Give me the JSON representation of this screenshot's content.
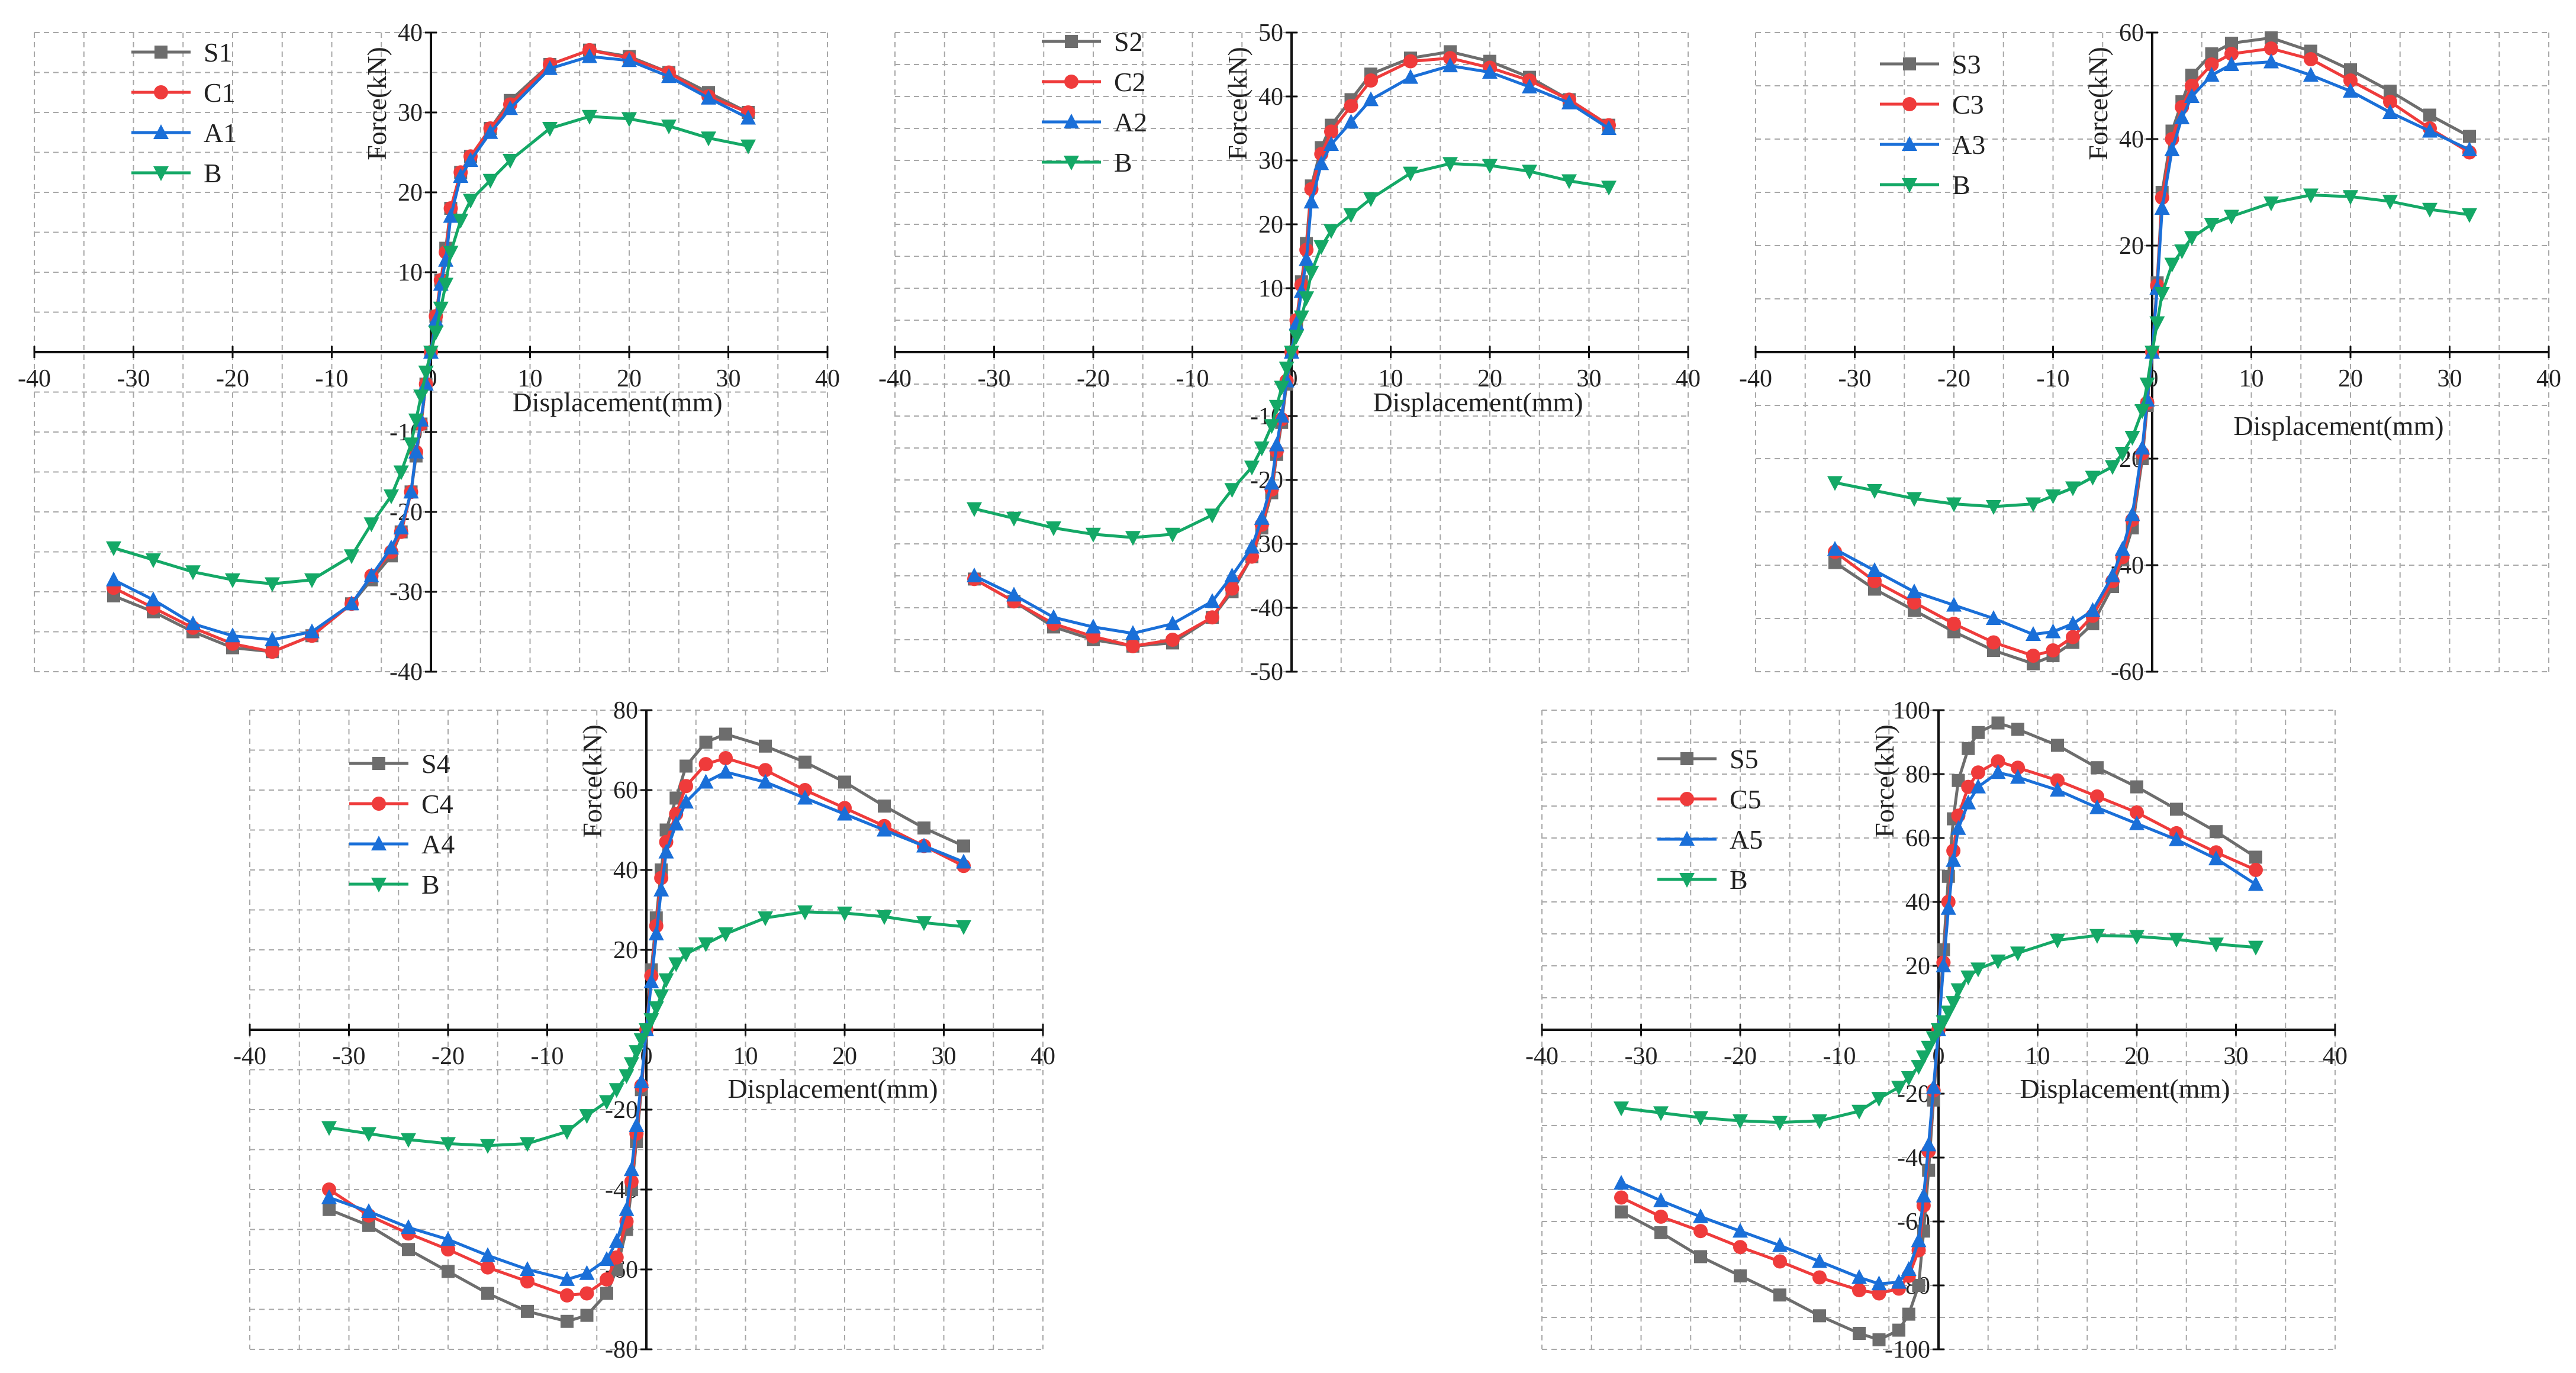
{
  "figure": {
    "colors": {
      "S": "#6d6d6d",
      "C": "#ef3b3b",
      "A": "#1a6fd8",
      "B": "#14a866"
    },
    "markers": {
      "S": "square",
      "C": "circle",
      "A": "triangle-up",
      "B": "triangle-down"
    }
  },
  "chart_data": [
    {
      "id": "p1",
      "type": "line",
      "xlabel": "Displacement(mm)",
      "ylabel": "Force(kN)",
      "xlim": [
        -40,
        40
      ],
      "ylim": [
        -40,
        40
      ],
      "x_ticks": [
        -40,
        -30,
        -20,
        -10,
        0,
        10,
        20,
        30,
        40
      ],
      "y_ticks": [
        -40,
        -30,
        -20,
        -10,
        0,
        10,
        20,
        30,
        40
      ],
      "legend": [
        "S1",
        "C1",
        "A1",
        "B"
      ],
      "x": [
        -32,
        -28,
        -24,
        -20,
        -16,
        -12,
        -8,
        -6,
        -4,
        -3,
        -2,
        -1.5,
        -1,
        -0.5,
        0,
        0.5,
        1,
        1.5,
        2,
        3,
        4,
        6,
        8,
        12,
        16,
        20,
        24,
        28,
        32
      ],
      "series": [
        {
          "name": "S1",
          "key": "S",
          "values": [
            -30.5,
            -32.5,
            -35,
            -37,
            -37.5,
            -35.5,
            -31.5,
            -28.5,
            -25.5,
            -22.5,
            -17.5,
            -13,
            -9,
            -4,
            0,
            4.5,
            9,
            13,
            18,
            22.5,
            24.5,
            28,
            31.5,
            36,
            37.8,
            37,
            35,
            32.5,
            30
          ]
        },
        {
          "name": "C1",
          "key": "C",
          "values": [
            -29.5,
            -32,
            -34.5,
            -36.5,
            -37.5,
            -35.5,
            -31.5,
            -28,
            -25,
            -22.5,
            -17.5,
            -12.5,
            -9,
            -4,
            0,
            4.5,
            9,
            12.5,
            18,
            22.5,
            24.5,
            28,
            31,
            36,
            37.8,
            36.8,
            35,
            32,
            30
          ]
        },
        {
          "name": "A1",
          "key": "A",
          "values": [
            -28.5,
            -31,
            -34,
            -35.5,
            -36,
            -35,
            -31.5,
            -28,
            -24.5,
            -22,
            -17.5,
            -12.5,
            -8.5,
            -4,
            0,
            4,
            8.5,
            11.5,
            17,
            22,
            24,
            27.5,
            30.5,
            35.5,
            37,
            36.5,
            34.5,
            31.8,
            29.3
          ]
        },
        {
          "name": "B",
          "key": "B",
          "values": [
            -24.5,
            -26,
            -27.5,
            -28.5,
            -29,
            -28.5,
            -25.5,
            -21.5,
            -18,
            -15,
            -11.5,
            -8.5,
            -5.5,
            -2.5,
            0,
            2.5,
            5.5,
            8.5,
            12.5,
            16.5,
            19,
            21.5,
            24,
            28,
            29.5,
            29.2,
            28.3,
            26.8,
            25.8
          ]
        }
      ]
    },
    {
      "id": "p2",
      "type": "line",
      "xlabel": "Displacement(mm)",
      "ylabel": "Force(kN)",
      "xlim": [
        -40,
        40
      ],
      "ylim": [
        -50,
        50
      ],
      "x_ticks": [
        -40,
        -30,
        -20,
        -10,
        0,
        10,
        20,
        30,
        40
      ],
      "y_ticks": [
        -50,
        -40,
        -30,
        -20,
        -10,
        0,
        10,
        20,
        30,
        40,
        50
      ],
      "legend": [
        "S2",
        "C2",
        "A2",
        "B"
      ],
      "x": [
        -32,
        -28,
        -24,
        -20,
        -16,
        -12,
        -8,
        -6,
        -4,
        -3,
        -2,
        -1.5,
        -1,
        -0.5,
        0,
        0.5,
        1,
        1.5,
        2,
        3,
        4,
        6,
        8,
        12,
        16,
        20,
        24,
        28,
        32
      ],
      "series": [
        {
          "name": "S2",
          "key": "S",
          "values": [
            -35.5,
            -39,
            -43,
            -45,
            -46,
            -45.5,
            -41.5,
            -37.5,
            -32,
            -27.5,
            -22,
            -16,
            -11,
            -5,
            0,
            5,
            11,
            17,
            26,
            32,
            35.5,
            39.5,
            43.5,
            46,
            47,
            45.5,
            43,
            39.5,
            35.5
          ]
        },
        {
          "name": "C2",
          "key": "C",
          "values": [
            -35.5,
            -39,
            -42.5,
            -44.5,
            -46,
            -45,
            -41.5,
            -37,
            -32,
            -27,
            -21.5,
            -15.5,
            -10.5,
            -4.5,
            0,
            5,
            10.5,
            16,
            25.5,
            31,
            34.5,
            38.5,
            42.5,
            45.5,
            46,
            44.5,
            42.5,
            39.5,
            35.5
          ]
        },
        {
          "name": "A2",
          "key": "A",
          "values": [
            -35,
            -38,
            -41.5,
            -43,
            -44,
            -42.5,
            -39,
            -35,
            -30.5,
            -26,
            -20.5,
            -14.5,
            -10,
            -4.5,
            0,
            4.5,
            9.5,
            14.5,
            23.5,
            29.5,
            32.5,
            36,
            39.5,
            43,
            44.8,
            43.8,
            41.5,
            39,
            35
          ]
        },
        {
          "name": "B",
          "key": "B",
          "values": [
            -24.5,
            -26,
            -27.5,
            -28.5,
            -29,
            -28.5,
            -25.5,
            -21.5,
            -18,
            -15,
            -11.5,
            -8.5,
            -5.5,
            -2.5,
            0,
            2.5,
            5.5,
            8.5,
            12.5,
            16.5,
            19,
            21.5,
            24,
            28,
            29.5,
            29.2,
            28.3,
            26.8,
            25.8
          ]
        }
      ]
    },
    {
      "id": "p3",
      "type": "line",
      "xlabel": "Displacement(mm)",
      "ylabel": "Force(kN)",
      "xlim": [
        -40,
        40
      ],
      "ylim": [
        -60,
        60
      ],
      "x_ticks": [
        -40,
        -30,
        -20,
        -10,
        0,
        10,
        20,
        30,
        40
      ],
      "y_ticks": [
        -60,
        -40,
        -20,
        0,
        20,
        40,
        60
      ],
      "legend": [
        "S3",
        "C3",
        "A3",
        "B"
      ],
      "x": [
        -32,
        -28,
        -24,
        -20,
        -16,
        -12,
        -10,
        -8,
        -6,
        -4,
        -3,
        -2,
        -1,
        -0.5,
        0,
        0.5,
        1,
        2,
        3,
        4,
        6,
        8,
        12,
        16,
        20,
        24,
        28,
        32
      ],
      "series": [
        {
          "name": "S3",
          "key": "S",
          "values": [
            -39.5,
            -44.5,
            -48.5,
            -52.5,
            -56,
            -58.5,
            -57,
            -54.5,
            -51,
            -44,
            -39,
            -33,
            -20,
            -10,
            0,
            13,
            30,
            41.5,
            47,
            52,
            56,
            58,
            59,
            56.5,
            53,
            49,
            44.5,
            40.5
          ]
        },
        {
          "name": "C3",
          "key": "C",
          "values": [
            -37.5,
            -43,
            -47,
            -51,
            -54.5,
            -57,
            -56,
            -53.5,
            -49.5,
            -43,
            -38.5,
            -31.5,
            -19,
            -9.5,
            0,
            12.5,
            29,
            40,
            46,
            50,
            54,
            56,
            57,
            55,
            51,
            47,
            42,
            37.5
          ]
        },
        {
          "name": "A3",
          "key": "A",
          "values": [
            -37,
            -41,
            -45,
            -47.5,
            -50,
            -53,
            -52.5,
            -51,
            -48.5,
            -42,
            -37,
            -30.5,
            -18,
            -9,
            0,
            12,
            27,
            38,
            44,
            48,
            52,
            54,
            54.5,
            52,
            49,
            45,
            41.5,
            38
          ]
        },
        {
          "name": "B",
          "key": "B",
          "values": [
            -24.5,
            -26,
            -27.5,
            -28.5,
            -29,
            -28.5,
            -27,
            -25.5,
            -23.5,
            -21.5,
            -19,
            -16,
            -11,
            -6,
            0,
            5.5,
            11,
            16.5,
            19,
            21.5,
            24,
            25.5,
            28,
            29.5,
            29.2,
            28.3,
            26.8,
            25.8
          ]
        }
      ]
    },
    {
      "id": "p4",
      "type": "line",
      "xlabel": "Displacement(mm)",
      "ylabel": "Force(kN)",
      "xlim": [
        -40,
        40
      ],
      "ylim": [
        -80,
        80
      ],
      "x_ticks": [
        -40,
        -30,
        -20,
        -10,
        0,
        10,
        20,
        30,
        40
      ],
      "y_ticks": [
        -80,
        -60,
        -40,
        -20,
        0,
        20,
        40,
        60,
        80
      ],
      "legend": [
        "S4",
        "C4",
        "A4",
        "B"
      ],
      "x": [
        -32,
        -28,
        -24,
        -20,
        -16,
        -12,
        -8,
        -6,
        -4,
        -3,
        -2,
        -1.5,
        -1,
        -0.5,
        0,
        0.5,
        1,
        1.5,
        2,
        3,
        4,
        6,
        8,
        12,
        16,
        20,
        24,
        28,
        32
      ],
      "series": [
        {
          "name": "S4",
          "key": "S",
          "values": [
            -45,
            -49,
            -55,
            -60.5,
            -66,
            -70.5,
            -73,
            -71.5,
            -66,
            -60,
            -50,
            -40,
            -28,
            -15,
            0,
            15,
            28,
            40,
            50,
            58,
            66,
            72,
            74,
            71,
            67,
            62,
            56,
            50.5,
            46
          ]
        },
        {
          "name": "C4",
          "key": "C",
          "values": [
            -40,
            -46.5,
            -51,
            -55,
            -59.5,
            -63,
            -66.5,
            -66,
            -62.5,
            -57,
            -48,
            -38,
            -26,
            -14,
            0,
            13.5,
            26,
            38,
            47,
            54,
            61,
            66.5,
            68,
            65,
            60,
            55.5,
            51,
            46,
            41
          ]
        },
        {
          "name": "A4",
          "key": "A",
          "values": [
            -42,
            -45.5,
            -49.5,
            -52.5,
            -56.5,
            -60,
            -62.5,
            -61,
            -57.5,
            -53,
            -45,
            -35,
            -24,
            -13,
            0,
            12,
            24,
            35,
            44.5,
            51.5,
            57,
            62,
            64.5,
            62,
            58,
            54,
            50,
            46,
            42
          ]
        },
        {
          "name": "B",
          "key": "B",
          "values": [
            -24.5,
            -26,
            -27.5,
            -28.5,
            -29,
            -28.5,
            -25.5,
            -21.5,
            -18,
            -15,
            -11.5,
            -8.5,
            -5.5,
            -2.5,
            0,
            2.5,
            5.5,
            8.5,
            12.5,
            16.5,
            19,
            21.5,
            24,
            28,
            29.5,
            29.2,
            28.3,
            26.8,
            25.8
          ]
        }
      ]
    },
    {
      "id": "p5",
      "type": "line",
      "xlabel": "Displacement(mm)",
      "ylabel": "Force(kN)",
      "xlim": [
        -40,
        40
      ],
      "ylim": [
        -100,
        100
      ],
      "x_ticks": [
        -40,
        -30,
        -20,
        -10,
        0,
        10,
        20,
        30,
        40
      ],
      "y_ticks": [
        -100,
        -80,
        -60,
        -40,
        -20,
        0,
        20,
        40,
        60,
        80,
        100
      ],
      "legend": [
        "S5",
        "C5",
        "A5",
        "B"
      ],
      "x": [
        -32,
        -28,
        -24,
        -20,
        -16,
        -12,
        -8,
        -6,
        -4,
        -3,
        -2,
        -1.5,
        -1,
        -0.5,
        0,
        0.5,
        1,
        1.5,
        2,
        3,
        4,
        6,
        8,
        12,
        16,
        20,
        24,
        28,
        32
      ],
      "series": [
        {
          "name": "S5",
          "key": "S",
          "values": [
            -57,
            -63.5,
            -71,
            -77,
            -83,
            -89.5,
            -95,
            -97,
            -94,
            -89,
            -80,
            -63,
            -44,
            -22,
            0,
            25,
            48,
            66,
            78,
            88,
            93,
            96,
            94,
            89,
            82,
            76,
            69,
            62,
            54
          ]
        },
        {
          "name": "C5",
          "key": "C",
          "values": [
            -52.5,
            -58.5,
            -63,
            -68,
            -72.5,
            -77.5,
            -81.5,
            -82.5,
            -81,
            -77,
            -69,
            -55,
            -38,
            -19,
            0,
            21,
            40,
            56,
            67,
            76,
            80.5,
            84,
            82,
            78,
            73,
            68,
            61.5,
            55.5,
            50
          ]
        },
        {
          "name": "A5",
          "key": "A",
          "values": [
            -48,
            -53.5,
            -58.5,
            -63,
            -67.5,
            -72.5,
            -77.5,
            -79.5,
            -79,
            -75,
            -66,
            -52,
            -36,
            -18,
            0,
            20,
            38,
            53,
            63,
            71,
            76,
            80.5,
            79,
            75,
            69.5,
            64.5,
            59.5,
            53.5,
            45.5
          ]
        },
        {
          "name": "B",
          "key": "B",
          "values": [
            -24.5,
            -26,
            -27.5,
            -28.5,
            -29,
            -28.5,
            -25.5,
            -21.5,
            -18,
            -15,
            -11.5,
            -8.5,
            -5.5,
            -2.5,
            0,
            2.5,
            5.5,
            8.5,
            12.5,
            16.5,
            19,
            21.5,
            24,
            28,
            29.5,
            29.2,
            28.3,
            26.8,
            25.8
          ]
        }
      ]
    }
  ]
}
